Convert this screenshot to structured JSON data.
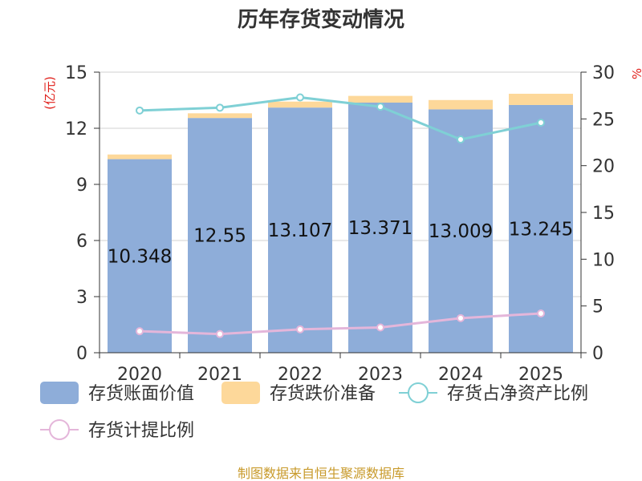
{
  "chart_data": {
    "type": "bar",
    "title": "历年存货变动情况",
    "y_left_unit": "(亿元)",
    "y_right_unit": "%",
    "categories": [
      "2020",
      "2021",
      "2022",
      "2023",
      "2024",
      "2025"
    ],
    "ylim_left": [
      0,
      15
    ],
    "yticks_left": [
      "0",
      "3",
      "6",
      "9",
      "12",
      "15"
    ],
    "ylim_right": [
      0,
      30
    ],
    "yticks_right": [
      "0",
      "5",
      "10",
      "15",
      "20",
      "25",
      "30"
    ],
    "series": [
      {
        "name": "存货账面价值",
        "kind": "bar",
        "axis": "left",
        "color": "#8eadd9",
        "values": [
          10.348,
          12.55,
          13.107,
          13.371,
          13.009,
          13.245
        ],
        "labels": [
          "10.348",
          "12.55",
          "13.107",
          "13.371",
          "13.009",
          "13.245"
        ]
      },
      {
        "name": "存货跌价准备",
        "kind": "bar-stacked",
        "axis": "left",
        "color": "#fdd89a",
        "values": [
          0.25,
          0.25,
          0.32,
          0.36,
          0.5,
          0.6
        ]
      },
      {
        "name": "存货占净资产比例",
        "kind": "line",
        "axis": "right",
        "color": "#7fd0d5",
        "values": [
          25.9,
          26.2,
          27.3,
          26.3,
          22.8,
          24.6
        ]
      },
      {
        "name": "存货计提比例",
        "kind": "line",
        "axis": "right",
        "color": "#e4b6da",
        "values": [
          2.3,
          2.0,
          2.5,
          2.7,
          3.7,
          4.2
        ]
      }
    ],
    "grid": true,
    "legend_position": "bottom"
  },
  "source_text": "制图数据来自恒生聚源数据库"
}
